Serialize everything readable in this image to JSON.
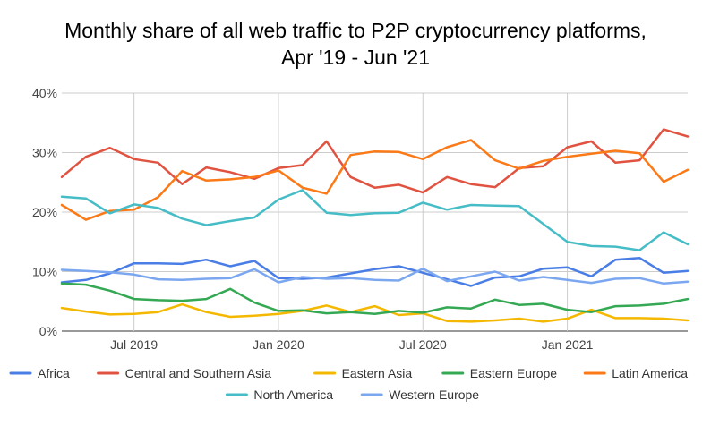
{
  "chart_data": {
    "type": "line",
    "title_lines": [
      "Monthly share of all web traffic to P2P cryptocurrency platforms,",
      "Apr '19 - Jun '21"
    ],
    "x": [
      "Apr 2019",
      "May 2019",
      "Jun 2019",
      "Jul 2019",
      "Aug 2019",
      "Sep 2019",
      "Oct 2019",
      "Nov 2019",
      "Dec 2019",
      "Jan 2020",
      "Feb 2020",
      "Mar 2020",
      "Apr 2020",
      "May 2020",
      "Jun 2020",
      "Jul 2020",
      "Aug 2020",
      "Sep 2020",
      "Oct 2020",
      "Nov 2020",
      "Dec 2020",
      "Jan 2021",
      "Feb 2021",
      "Mar 2021",
      "Apr 2021",
      "May 2021",
      "Jun 2021"
    ],
    "x_tick_labels": [
      {
        "index": 3,
        "label": "Jul 2019"
      },
      {
        "index": 9,
        "label": "Jan 2020"
      },
      {
        "index": 15,
        "label": "Jul 2020"
      },
      {
        "index": 21,
        "label": "Jan 2021"
      }
    ],
    "y_ticks": [
      "0%",
      "10%",
      "20%",
      "30%",
      "40%"
    ],
    "ylim": [
      0,
      40
    ],
    "grid": true,
    "legend_position": "bottom",
    "series": [
      {
        "name": "Africa",
        "color": "#4a7ee6",
        "values": [
          8.2,
          8.6,
          9.7,
          11.4,
          11.4,
          11.3,
          12.0,
          10.9,
          11.8,
          8.9,
          8.8,
          9.0,
          9.7,
          10.4,
          10.9,
          9.8,
          8.7,
          7.6,
          9.0,
          9.2,
          10.5,
          10.7,
          9.2,
          12.0,
          12.3,
          9.8,
          10.1
        ]
      },
      {
        "name": "Central and Southern Asia",
        "color": "#e05340",
        "values": [
          25.9,
          29.3,
          30.8,
          28.9,
          28.3,
          24.7,
          27.5,
          26.7,
          25.6,
          27.4,
          27.9,
          31.9,
          25.9,
          24.1,
          24.6,
          23.3,
          25.9,
          24.7,
          24.2,
          27.4,
          27.7,
          30.9,
          31.9,
          28.3,
          28.7,
          33.9,
          32.7
        ]
      },
      {
        "name": "Eastern Asia",
        "color": "#f5b800",
        "values": [
          3.9,
          3.3,
          2.8,
          2.9,
          3.2,
          4.5,
          3.2,
          2.4,
          2.6,
          2.9,
          3.4,
          4.3,
          3.2,
          4.2,
          2.7,
          3.0,
          1.7,
          1.6,
          1.8,
          2.1,
          1.6,
          2.1,
          3.6,
          2.2,
          2.2,
          2.1,
          1.8
        ]
      },
      {
        "name": "Eastern Europe",
        "color": "#34a853",
        "values": [
          8.0,
          7.8,
          6.8,
          5.4,
          5.2,
          5.1,
          5.4,
          7.1,
          4.8,
          3.4,
          3.5,
          3.0,
          3.2,
          2.9,
          3.4,
          3.1,
          4.0,
          3.8,
          5.3,
          4.4,
          4.6,
          3.6,
          3.2,
          4.2,
          4.3,
          4.6,
          5.4
        ]
      },
      {
        "name": "Latin America",
        "color": "#fb7a17",
        "values": [
          21.2,
          18.7,
          20.2,
          20.4,
          22.5,
          26.9,
          25.3,
          25.5,
          25.9,
          27.0,
          24.1,
          23.1,
          29.6,
          30.2,
          30.1,
          28.9,
          30.9,
          32.1,
          28.7,
          27.3,
          28.6,
          29.3,
          29.8,
          30.3,
          29.9,
          25.1,
          27.1
        ]
      },
      {
        "name": "North America",
        "color": "#46bdc6",
        "values": [
          22.6,
          22.3,
          19.8,
          21.3,
          20.7,
          18.9,
          17.8,
          18.5,
          19.1,
          22.1,
          23.7,
          19.9,
          19.5,
          19.8,
          19.9,
          21.6,
          20.4,
          21.2,
          21.1,
          21.0,
          18.0,
          15.0,
          14.3,
          14.2,
          13.6,
          16.6,
          14.6
        ]
      },
      {
        "name": "Western Europe",
        "color": "#7ba7f0",
        "values": [
          10.3,
          10.1,
          9.9,
          9.5,
          8.7,
          8.6,
          8.8,
          8.9,
          10.4,
          8.2,
          9.1,
          8.8,
          8.9,
          8.6,
          8.5,
          10.5,
          8.4,
          9.2,
          10.0,
          8.5,
          9.1,
          8.6,
          8.1,
          8.8,
          8.9,
          8.0,
          8.3
        ]
      }
    ]
  }
}
